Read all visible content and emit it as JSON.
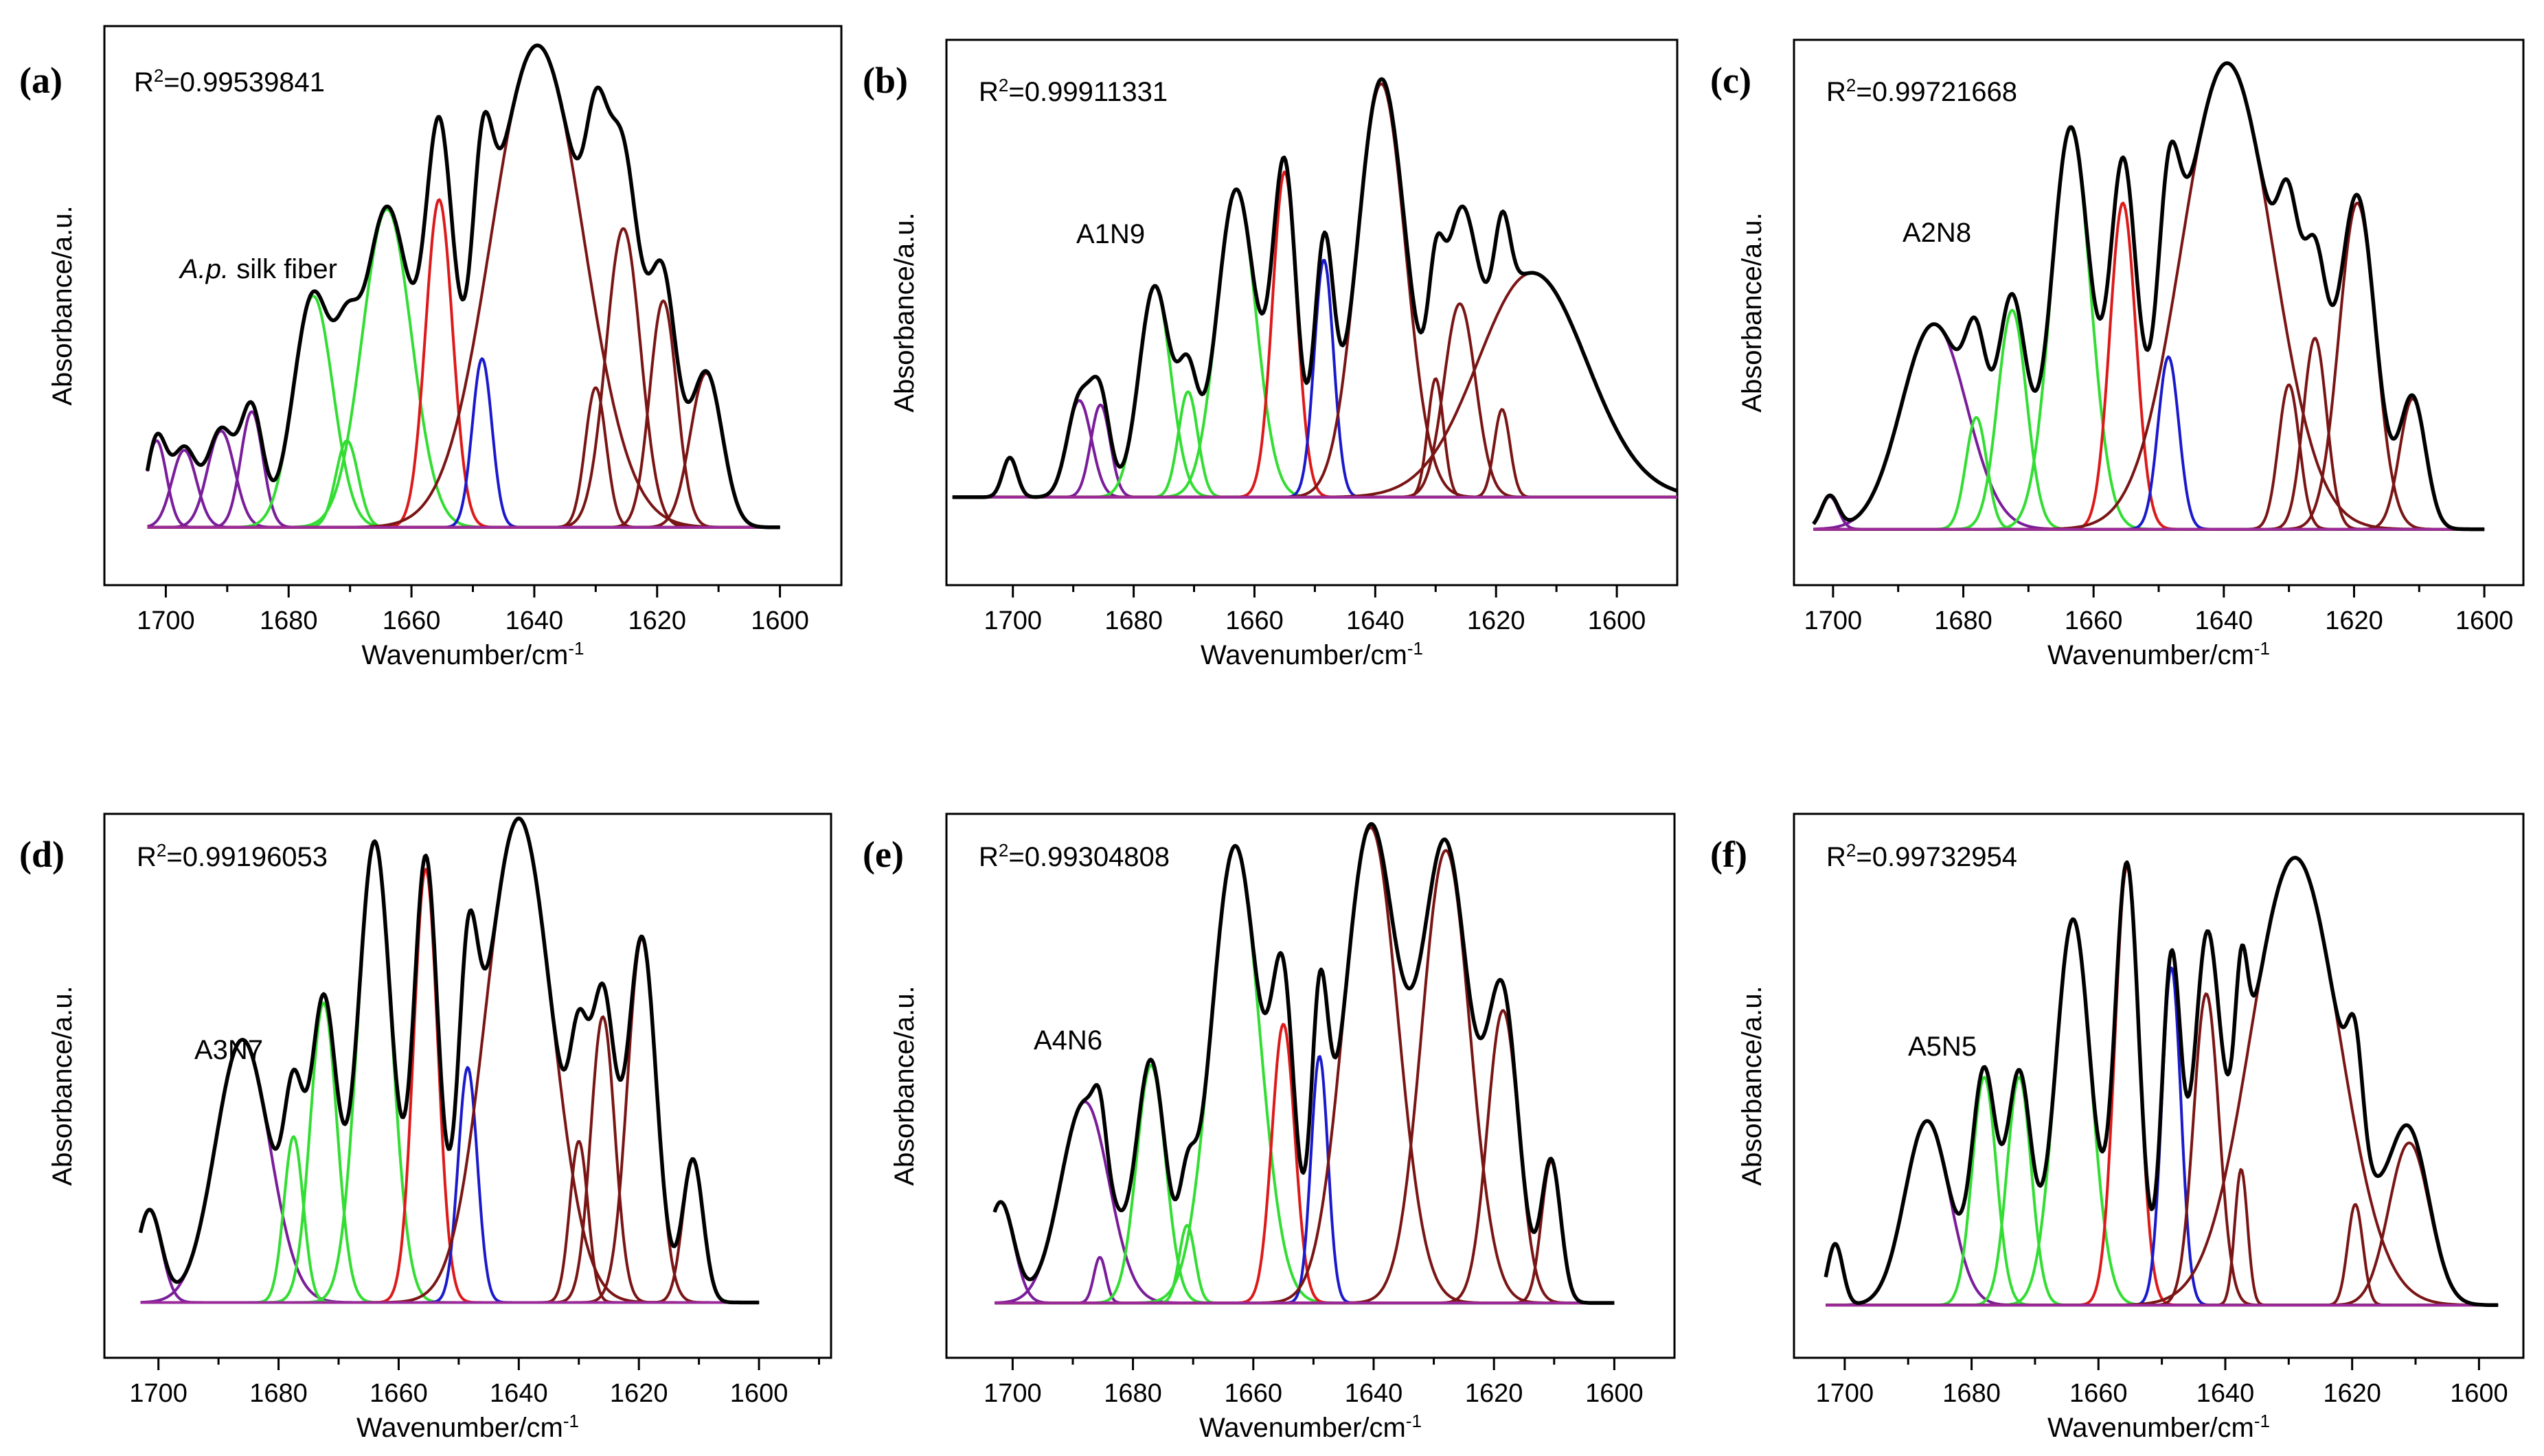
{
  "figure": {
    "colors": {
      "envelope": "#000000",
      "purple": "#7a1d9a",
      "green": "#33dd33",
      "red": "#dd1a1a",
      "blue": "#1a1acc",
      "brown": "#7a1515",
      "baseline": "#9a2a9a"
    }
  },
  "chart_data": [
    {
      "type": "line",
      "panel_label": "(a)",
      "r2_prefix": "R",
      "r2_power": "2",
      "r2_value": "=0.99539841",
      "sample_label_italic": "A.p.",
      "sample_label": " silk fiber",
      "xlabel": "Wavenumber/cm",
      "xlabel_power": "-1",
      "ylabel": "Absorbance/a.u.",
      "x_reversed": true,
      "xlim": [
        1710,
        1590
      ],
      "ylim": [
        -0.12,
        1.04
      ],
      "x_range": [
        1703,
        1600
      ],
      "x_ticks": [
        "1700",
        "1680",
        "1660",
        "1640",
        "1620",
        "1600"
      ],
      "peaks": [
        {
          "center": 1701.5,
          "height": 0.18,
          "width": 1.6,
          "color": "purple"
        },
        {
          "center": 1697,
          "height": 0.16,
          "width": 2.0,
          "color": "purple"
        },
        {
          "center": 1691,
          "height": 0.2,
          "width": 2.2,
          "color": "purple"
        },
        {
          "center": 1686,
          "height": 0.24,
          "width": 1.8,
          "color": "purple"
        },
        {
          "center": 1676,
          "height": 0.48,
          "width": 3.2,
          "color": "green"
        },
        {
          "center": 1670.5,
          "height": 0.18,
          "width": 1.8,
          "color": "green"
        },
        {
          "center": 1664,
          "height": 0.66,
          "width": 4.0,
          "color": "green"
        },
        {
          "center": 1655.5,
          "height": 0.68,
          "width": 2.2,
          "color": "red"
        },
        {
          "center": 1648.5,
          "height": 0.35,
          "width": 1.6,
          "color": "blue"
        },
        {
          "center": 1639.5,
          "height": 1.0,
          "width": 7.5,
          "color": "brown"
        },
        {
          "center": 1630,
          "height": 0.29,
          "width": 1.7,
          "color": "brown"
        },
        {
          "center": 1625.5,
          "height": 0.62,
          "width": 2.8,
          "color": "brown"
        },
        {
          "center": 1619,
          "height": 0.47,
          "width": 2.2,
          "color": "brown"
        },
        {
          "center": 1612,
          "height": 0.32,
          "width": 2.6,
          "color": "brown"
        }
      ]
    },
    {
      "type": "line",
      "panel_label": "(b)",
      "r2_prefix": "R",
      "r2_power": "2",
      "r2_value": "=0.99911331",
      "sample_label_italic": "",
      "sample_label": "A1N9",
      "xlabel": "Wavenumber/cm",
      "xlabel_power": "-1",
      "ylabel": "Absorbance/a.u.",
      "x_reversed": true,
      "xlim": [
        1711,
        1590
      ],
      "ylim": [
        -0.2,
        1.04
      ],
      "x_range": [
        1710,
        1590
      ],
      "x_ticks": [
        "1700",
        "1680",
        "1660",
        "1640",
        "1620",
        "1600"
      ],
      "peaks": [
        {
          "center": 1700.5,
          "height": 0.09,
          "width": 1.2,
          "color": "purple"
        },
        {
          "center": 1689,
          "height": 0.22,
          "width": 2.0,
          "color": "purple"
        },
        {
          "center": 1685.5,
          "height": 0.21,
          "width": 1.6,
          "color": "purple"
        },
        {
          "center": 1676.5,
          "height": 0.48,
          "width": 2.6,
          "color": "green"
        },
        {
          "center": 1671,
          "height": 0.24,
          "width": 1.6,
          "color": "green"
        },
        {
          "center": 1663,
          "height": 0.7,
          "width": 3.2,
          "color": "green"
        },
        {
          "center": 1655,
          "height": 0.74,
          "width": 2.0,
          "color": "red"
        },
        {
          "center": 1648.5,
          "height": 0.54,
          "width": 1.6,
          "color": "blue"
        },
        {
          "center": 1639,
          "height": 0.94,
          "width": 4.0,
          "color": "brown"
        },
        {
          "center": 1630,
          "height": 0.27,
          "width": 1.3,
          "color": "brown"
        },
        {
          "center": 1626,
          "height": 0.44,
          "width": 2.6,
          "color": "brown"
        },
        {
          "center": 1619,
          "height": 0.2,
          "width": 1.3,
          "color": "brown"
        },
        {
          "center": 1614,
          "height": 0.51,
          "width": 9.0,
          "color": "brown"
        }
      ]
    },
    {
      "type": "line",
      "panel_label": "(c)",
      "r2_prefix": "R",
      "r2_power": "2",
      "r2_value": "=0.99721668",
      "sample_label_italic": "",
      "sample_label": "A2N8",
      "xlabel": "Wavenumber/cm",
      "xlabel_power": "-1",
      "ylabel": "Absorbance/a.u.",
      "x_reversed": true,
      "xlim": [
        1706,
        1594
      ],
      "ylim": [
        -0.12,
        1.05
      ],
      "x_range": [
        1703,
        1600
      ],
      "x_ticks": [
        "1700",
        "1680",
        "1660",
        "1640",
        "1620",
        "1600"
      ],
      "peaks": [
        {
          "center": 1700.5,
          "height": 0.07,
          "width": 1.3,
          "color": "purple"
        },
        {
          "center": 1684.5,
          "height": 0.44,
          "width": 5.0,
          "color": "purple"
        },
        {
          "center": 1678,
          "height": 0.24,
          "width": 1.6,
          "color": "green"
        },
        {
          "center": 1672.5,
          "height": 0.47,
          "width": 2.2,
          "color": "green"
        },
        {
          "center": 1663.5,
          "height": 0.86,
          "width": 3.0,
          "color": "green"
        },
        {
          "center": 1655.5,
          "height": 0.7,
          "width": 2.0,
          "color": "red"
        },
        {
          "center": 1648.5,
          "height": 0.37,
          "width": 1.6,
          "color": "blue"
        },
        {
          "center": 1639.5,
          "height": 1.0,
          "width": 7.0,
          "color": "brown"
        },
        {
          "center": 1630,
          "height": 0.31,
          "width": 1.6,
          "color": "brown"
        },
        {
          "center": 1626,
          "height": 0.41,
          "width": 1.8,
          "color": "brown"
        },
        {
          "center": 1619.5,
          "height": 0.7,
          "width": 2.8,
          "color": "brown"
        },
        {
          "center": 1611,
          "height": 0.28,
          "width": 2.0,
          "color": "brown"
        }
      ]
    },
    {
      "type": "line",
      "panel_label": "(d)",
      "r2_prefix": "R",
      "r2_power": "2",
      "r2_value": "=0.99196053",
      "sample_label_italic": "",
      "sample_label": "A3N7",
      "xlabel": "Wavenumber/cm",
      "xlabel_power": "-1",
      "ylabel": "Absorbance/a.u.",
      "x_reversed": true,
      "xlim": [
        1709,
        1588
      ],
      "ylim": [
        -0.12,
        1.06
      ],
      "x_range": [
        1703,
        1600
      ],
      "x_ticks": [
        "1700",
        "1680",
        "1660",
        "1640",
        "1620",
        "1600"
      ],
      "peaks": [
        {
          "center": 1701.5,
          "height": 0.2,
          "width": 2.0,
          "color": "purple"
        },
        {
          "center": 1686,
          "height": 0.57,
          "width": 4.5,
          "color": "purple"
        },
        {
          "center": 1677.5,
          "height": 0.36,
          "width": 1.6,
          "color": "green"
        },
        {
          "center": 1672.5,
          "height": 0.65,
          "width": 2.2,
          "color": "green"
        },
        {
          "center": 1664,
          "height": 1.0,
          "width": 2.8,
          "color": "green"
        },
        {
          "center": 1655.5,
          "height": 0.94,
          "width": 2.0,
          "color": "red"
        },
        {
          "center": 1648.5,
          "height": 0.51,
          "width": 1.6,
          "color": "blue"
        },
        {
          "center": 1640,
          "height": 1.05,
          "width": 5.5,
          "color": "brown"
        },
        {
          "center": 1630,
          "height": 0.35,
          "width": 1.5,
          "color": "brown"
        },
        {
          "center": 1626,
          "height": 0.62,
          "width": 2.0,
          "color": "brown"
        },
        {
          "center": 1619.5,
          "height": 0.79,
          "width": 2.4,
          "color": "brown"
        },
        {
          "center": 1611,
          "height": 0.31,
          "width": 1.7,
          "color": "brown"
        }
      ]
    },
    {
      "type": "line",
      "panel_label": "(e)",
      "r2_prefix": "R",
      "r2_power": "2",
      "r2_value": "=0.99304808",
      "sample_label_italic": "",
      "sample_label": "A4N6",
      "xlabel": "Wavenumber/cm",
      "xlabel_power": "-1",
      "ylabel": "Absorbance/a.u.",
      "x_reversed": true,
      "xlim": [
        1711,
        1590
      ],
      "ylim": [
        -0.12,
        1.07
      ],
      "x_range": [
        1703,
        1600
      ],
      "x_ticks": [
        "1700",
        "1680",
        "1660",
        "1640",
        "1620",
        "1600"
      ],
      "peaks": [
        {
          "center": 1702,
          "height": 0.22,
          "width": 2.2,
          "color": "purple"
        },
        {
          "center": 1688,
          "height": 0.44,
          "width": 4.0,
          "color": "purple"
        },
        {
          "center": 1685.5,
          "height": 0.1,
          "width": 1.0,
          "color": "purple"
        },
        {
          "center": 1677,
          "height": 0.52,
          "width": 2.4,
          "color": "green"
        },
        {
          "center": 1671,
          "height": 0.17,
          "width": 1.3,
          "color": "green"
        },
        {
          "center": 1663,
          "height": 1.0,
          "width": 4.0,
          "color": "green"
        },
        {
          "center": 1655,
          "height": 0.61,
          "width": 1.9,
          "color": "red"
        },
        {
          "center": 1649,
          "height": 0.54,
          "width": 1.4,
          "color": "blue"
        },
        {
          "center": 1640.5,
          "height": 1.04,
          "width": 4.5,
          "color": "brown"
        },
        {
          "center": 1628,
          "height": 0.99,
          "width": 4.0,
          "color": "brown"
        },
        {
          "center": 1618.5,
          "height": 0.64,
          "width": 2.6,
          "color": "brown"
        },
        {
          "center": 1610.5,
          "height": 0.31,
          "width": 1.6,
          "color": "brown"
        }
      ]
    },
    {
      "type": "line",
      "panel_label": "(f)",
      "r2_prefix": "R",
      "r2_power": "2",
      "r2_value": "=0.99732954",
      "sample_label_italic": "",
      "sample_label": "A5N5",
      "xlabel": "Wavenumber/cm",
      "xlabel_power": "-1",
      "ylabel": "Absorbance/a.u.",
      "x_reversed": true,
      "xlim": [
        1708,
        1593
      ],
      "ylim": [
        -0.12,
        1.12
      ],
      "x_range": [
        1703,
        1597
      ],
      "x_ticks": [
        "1700",
        "1680",
        "1660",
        "1640",
        "1620",
        "1600"
      ],
      "peaks": [
        {
          "center": 1701.5,
          "height": 0.14,
          "width": 1.2,
          "color": "purple"
        },
        {
          "center": 1687,
          "height": 0.42,
          "width": 3.5,
          "color": "purple"
        },
        {
          "center": 1678,
          "height": 0.52,
          "width": 1.9,
          "color": "green"
        },
        {
          "center": 1672.5,
          "height": 0.52,
          "width": 1.9,
          "color": "green"
        },
        {
          "center": 1664,
          "height": 0.88,
          "width": 2.8,
          "color": "green"
        },
        {
          "center": 1655.5,
          "height": 1.0,
          "width": 1.9,
          "color": "red"
        },
        {
          "center": 1648.5,
          "height": 0.77,
          "width": 1.5,
          "color": "blue"
        },
        {
          "center": 1643,
          "height": 0.71,
          "width": 2.0,
          "color": "brown"
        },
        {
          "center": 1637.5,
          "height": 0.31,
          "width": 1.0,
          "color": "brown"
        },
        {
          "center": 1629,
          "height": 1.02,
          "width": 7.0,
          "color": "brown"
        },
        {
          "center": 1619.5,
          "height": 0.23,
          "width": 1.2,
          "color": "brown"
        },
        {
          "center": 1611,
          "height": 0.37,
          "width": 3.2,
          "color": "brown"
        }
      ]
    }
  ]
}
